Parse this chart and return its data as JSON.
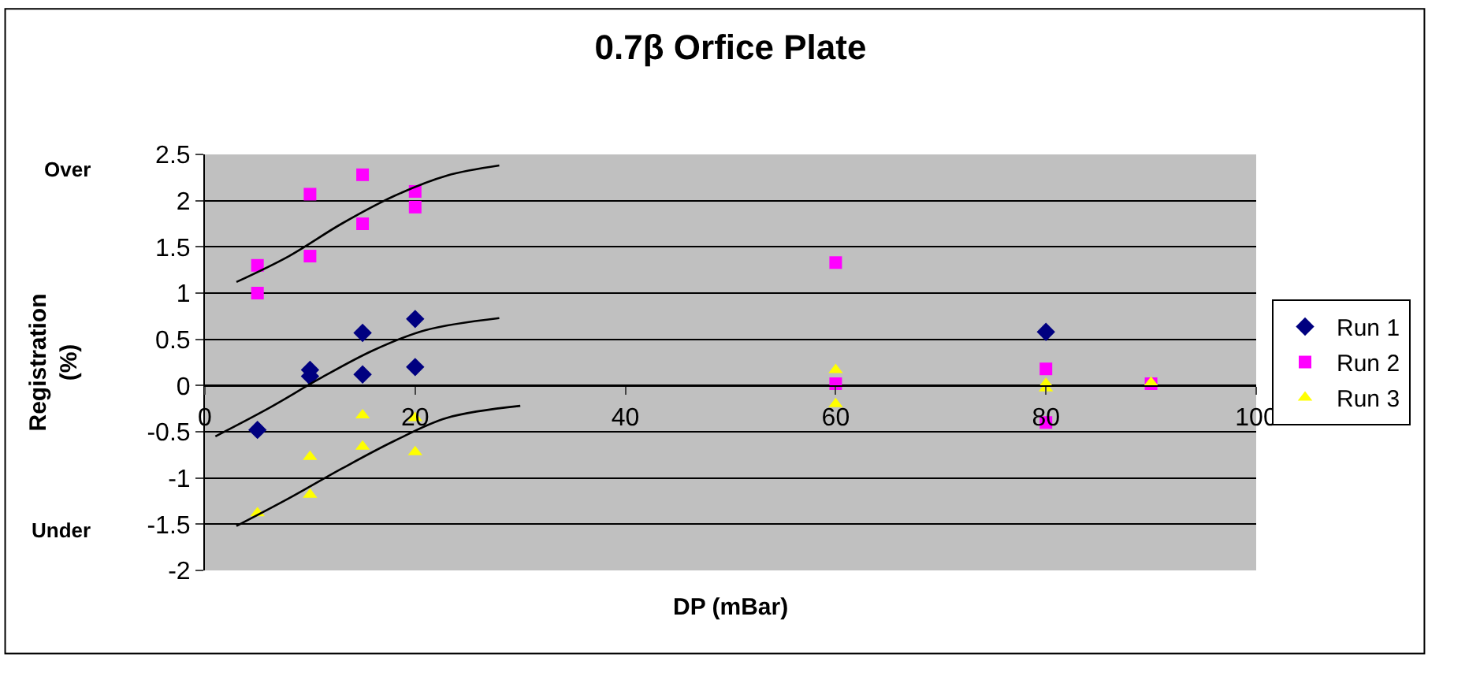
{
  "chart_data": {
    "type": "scatter",
    "title": "0.7β Orfice Plate",
    "xlabel": "DP (mBar)",
    "ylabel": "Registration (%)",
    "annotations": [
      "Over",
      "Under"
    ],
    "xlim": [
      0,
      100
    ],
    "xticks": [
      0,
      20,
      40,
      60,
      80,
      100
    ],
    "ylim": [
      -2,
      2.5
    ],
    "yticks": [
      -2,
      -1.5,
      -1,
      -0.5,
      0,
      0.5,
      1,
      1.5,
      2,
      2.5
    ],
    "grid": "y",
    "legend": "right",
    "series": [
      {
        "name": "Run 1",
        "color": "#000080",
        "marker": "diamond",
        "x": [
          5,
          10,
          10,
          15,
          15,
          20,
          20,
          80
        ],
        "values": [
          -0.48,
          0.17,
          0.1,
          0.57,
          0.12,
          0.72,
          0.2,
          0.58
        ]
      },
      {
        "name": "Run 2",
        "color": "#ff00ff",
        "marker": "square",
        "x": [
          5,
          5,
          10,
          10,
          15,
          15,
          20,
          20,
          60,
          60,
          80,
          80,
          90
        ],
        "values": [
          1.3,
          1.0,
          2.07,
          1.4,
          2.28,
          1.75,
          2.1,
          1.93,
          1.33,
          0.02,
          0.18,
          -0.4,
          0.02
        ]
      },
      {
        "name": "Run 3",
        "color": "#ffff00",
        "marker": "triangle",
        "x": [
          5,
          10,
          10,
          15,
          15,
          20,
          20,
          60,
          60,
          80,
          80,
          90
        ],
        "values": [
          -1.38,
          -0.77,
          -1.18,
          -0.32,
          -0.66,
          -0.35,
          -0.72,
          0.17,
          -0.2,
          0.02,
          -0.03,
          0.03
        ]
      },
      {
        "type": "line",
        "color": "#000000",
        "marker": "none",
        "x": [
          3,
          8,
          13,
          18,
          23,
          28
        ],
        "values": [
          1.12,
          1.4,
          1.75,
          2.05,
          2.27,
          2.38
        ]
      },
      {
        "type": "line",
        "color": "#000000",
        "marker": "none",
        "x": [
          1,
          6,
          11,
          16,
          21,
          28
        ],
        "values": [
          -0.55,
          -0.25,
          0.08,
          0.38,
          0.6,
          0.73
        ]
      },
      {
        "type": "line",
        "color": "#000000",
        "marker": "none",
        "x": [
          3,
          8,
          13,
          18,
          23,
          30
        ],
        "values": [
          -1.52,
          -1.22,
          -0.9,
          -0.6,
          -0.35,
          -0.22
        ]
      }
    ]
  }
}
